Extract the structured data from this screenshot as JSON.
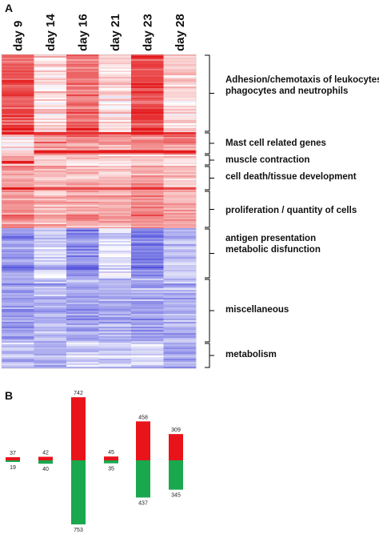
{
  "panel_a_letter": "A",
  "panel_b_letter": "B",
  "colors": {
    "up": "#e8141a",
    "down": "#1aa84e",
    "heat_high": "#e41a1c",
    "heat_low": "#3a3ad8",
    "heat_mid": "#ffffff"
  },
  "chart_data": [
    {
      "type": "heatmap",
      "columns": [
        "day 9",
        "day 14",
        "day 16",
        "day 21",
        "day 23",
        "day 28"
      ],
      "clusters": [
        {
          "label_lines": [
            "Adhesion/chemotaxis of leukocytes,",
            "phagocytes and neutrophils"
          ],
          "trend": [
            0.75,
            0.15,
            0.6,
            0.15,
            0.8,
            0.2
          ]
        },
        {
          "label_lines": [
            "Mast cell related genes"
          ],
          "trend": [
            0.15,
            0.5,
            0.5,
            0.45,
            0.55,
            0.55
          ]
        },
        {
          "label_lines": [
            "muscle contraction"
          ],
          "trend": [
            0.4,
            0.2,
            0.2,
            0.2,
            0.25,
            0.25
          ]
        },
        {
          "label_lines": [
            "cell death/tissue development"
          ],
          "trend": [
            0.45,
            0.35,
            0.3,
            0.3,
            0.45,
            0.3
          ]
        },
        {
          "label_lines": [
            "proliferation / quantity of cells"
          ],
          "trend": [
            0.5,
            0.35,
            0.4,
            0.35,
            0.55,
            0.4
          ]
        },
        {
          "label_lines": [
            "antigen presentation",
            "metabolic disfunction"
          ],
          "trend": [
            -0.55,
            -0.25,
            -0.6,
            -0.15,
            -0.65,
            -0.3
          ]
        },
        {
          "label_lines": [
            "miscellaneous"
          ],
          "trend": [
            -0.5,
            -0.4,
            -0.45,
            -0.4,
            -0.45,
            -0.4
          ]
        },
        {
          "label_lines": [
            "metabolism"
          ],
          "trend": [
            -0.3,
            -0.45,
            -0.2,
            -0.3,
            -0.25,
            -0.45
          ]
        }
      ]
    },
    {
      "type": "bar",
      "series": [
        {
          "color_key": "up",
          "values": [
            37,
            42,
            742,
            45,
            458,
            309
          ]
        },
        {
          "color_key": "down",
          "values": [
            19,
            40,
            753,
            35,
            437,
            345
          ]
        }
      ]
    }
  ]
}
